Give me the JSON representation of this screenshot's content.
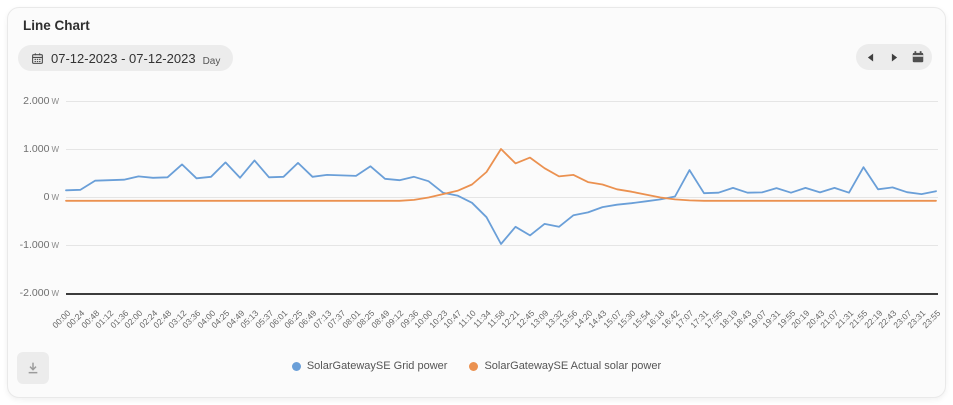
{
  "header": {
    "title": "Line Chart",
    "date_range": "07-12-2023 - 07-12-2023",
    "period": "Day"
  },
  "nav": {
    "prev_icon": "chevron-left",
    "next_icon": "chevron-right",
    "calendar_icon": "calendar-filled"
  },
  "toolbar": {
    "download_icon": "download-to-line"
  },
  "colors": {
    "grid_power": "#6a9fd8",
    "solar_power": "#eb9150",
    "gridline": "#e5e5e5",
    "axis_line": "#3c3c3c",
    "pill_bg": "#ececec",
    "card_bg": "#fbfbfb"
  },
  "chart_data": {
    "type": "line",
    "title": "Line Chart",
    "unit": "W",
    "ylim": [
      -2000,
      2000
    ],
    "grid": true,
    "legend_position": "bottom",
    "y_ticks": [
      {
        "label": "2.000",
        "value": 2000
      },
      {
        "label": "1.000",
        "value": 1000
      },
      {
        "label": "0",
        "value": 0
      },
      {
        "label": "-1.000",
        "value": -1000
      },
      {
        "label": "-2.000",
        "value": -2000,
        "axis": true
      }
    ],
    "x_tick_labels": [
      "00:00",
      "00:24",
      "00:48",
      "01:12",
      "01:36",
      "02:00",
      "02:24",
      "02:48",
      "03:12",
      "03:36",
      "04:00",
      "04:25",
      "04:49",
      "05:13",
      "05:37",
      "06:01",
      "06:25",
      "06:49",
      "07:13",
      "07:37",
      "08:01",
      "08:25",
      "08:49",
      "09:12",
      "09:36",
      "10:00",
      "10:23",
      "10:47",
      "11:10",
      "11:34",
      "11:58",
      "12:21",
      "12:45",
      "13:09",
      "13:32",
      "13:56",
      "14:20",
      "14:43",
      "15:07",
      "15:30",
      "15:54",
      "16:18",
      "16:42",
      "17:07",
      "17:31",
      "17:55",
      "18:19",
      "18:43",
      "19:07",
      "19:31",
      "19:55",
      "20:19",
      "20:43",
      "21:07",
      "21:31",
      "21:55",
      "22:19",
      "22:43",
      "23:07",
      "23:31",
      "23:55"
    ],
    "series": [
      {
        "name": "SolarGatewaySE Grid power",
        "color": "#6a9fd8",
        "values": [
          140,
          150,
          340,
          350,
          360,
          430,
          400,
          410,
          680,
          390,
          420,
          720,
          400,
          760,
          410,
          420,
          710,
          420,
          460,
          450,
          440,
          640,
          380,
          350,
          420,
          330,
          90,
          30,
          -120,
          -420,
          -980,
          -620,
          -800,
          -560,
          -620,
          -380,
          -320,
          -210,
          -160,
          -130,
          -90,
          -50,
          10,
          560,
          80,
          90,
          190,
          90,
          95,
          185,
          90,
          190,
          95,
          190,
          90,
          620,
          160,
          200,
          100,
          60,
          120
        ]
      },
      {
        "name": "SolarGatewaySE Actual solar power",
        "color": "#eb9150",
        "values": [
          -80,
          -80,
          -80,
          -80,
          -80,
          -80,
          -80,
          -80,
          -80,
          -80,
          -80,
          -80,
          -80,
          -80,
          -80,
          -80,
          -80,
          -80,
          -80,
          -80,
          -80,
          -80,
          -80,
          -80,
          -60,
          -10,
          60,
          130,
          260,
          520,
          1000,
          700,
          820,
          600,
          430,
          460,
          310,
          260,
          160,
          110,
          50,
          -10,
          -50,
          -70,
          -80,
          -80,
          -80,
          -80,
          -80,
          -80,
          -80,
          -80,
          -80,
          -80,
          -80,
          -80,
          -80,
          -80,
          -80,
          -80,
          -80
        ]
      }
    ]
  }
}
